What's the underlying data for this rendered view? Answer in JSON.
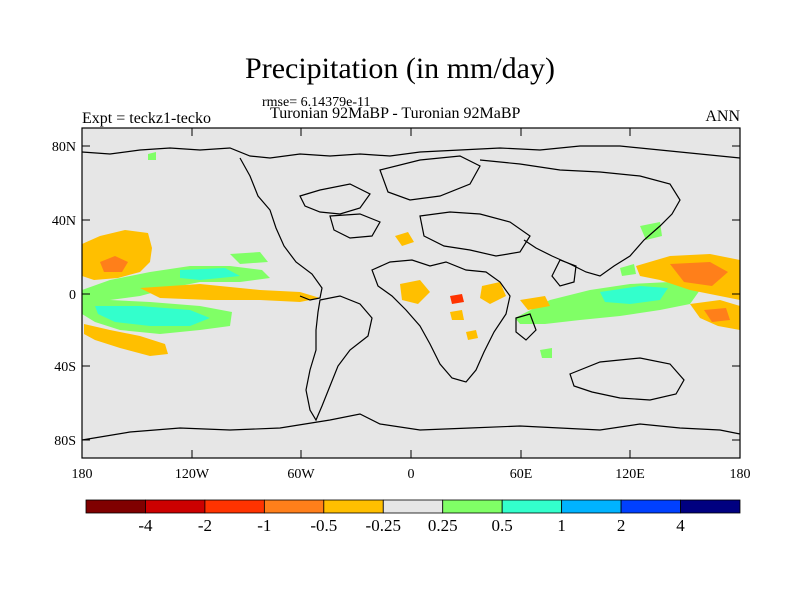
{
  "title": "Precipitation (in mm/day)",
  "rmse": "rmse= 6.14379e-11",
  "subtitle": "Turonian  92MaBP - Turonian  92MaBP",
  "left_label": "Expt = teckz1-tecko",
  "right_label": "ANN",
  "y_ticks": [
    "80N",
    "40N",
    "0",
    "40S",
    "80S"
  ],
  "x_ticks": [
    "180",
    "120W",
    "60W",
    "0",
    "60E",
    "120E",
    "180"
  ],
  "colorbar": {
    "labels": [
      "-4",
      "-2",
      "-1",
      "-0.5",
      "-0.25",
      "0.25",
      "0.5",
      "1",
      "2",
      "4"
    ],
    "colors": [
      "#800000",
      "#cc0000",
      "#ff3300",
      "#ff7f1a",
      "#ffbf00",
      "#e6e6e6",
      "#80ff66",
      "#33ffcc",
      "#00b3ff",
      "#0040ff",
      "#000080"
    ]
  },
  "colors": {
    "background": "#e6e6e6",
    "orange": "#ffbf00",
    "dark_orange": "#ff7f1a",
    "red": "#ff3300",
    "green": "#80ff66",
    "cyan": "#33ffcc"
  }
}
